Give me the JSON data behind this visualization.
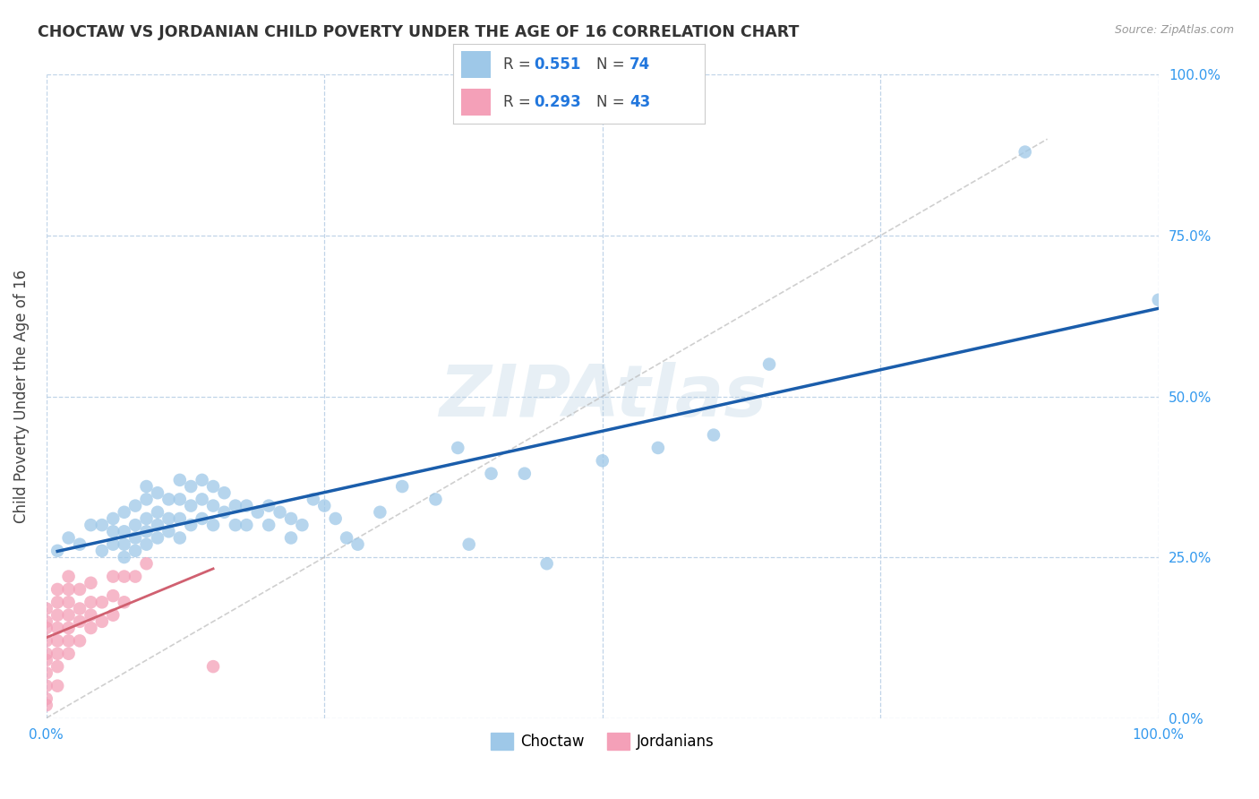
{
  "title": "CHOCTAW VS JORDANIAN CHILD POVERTY UNDER THE AGE OF 16 CORRELATION CHART",
  "source": "Source: ZipAtlas.com",
  "ylabel": "Child Poverty Under the Age of 16",
  "xlim": [
    0.0,
    1.0
  ],
  "ylim": [
    0.0,
    1.0
  ],
  "xticks": [
    0.0,
    0.25,
    0.5,
    0.75,
    1.0
  ],
  "yticks": [
    0.0,
    0.25,
    0.5,
    0.75,
    1.0
  ],
  "xticklabels": [
    "0.0%",
    "",
    "",
    "",
    "100.0%"
  ],
  "yticklabels_right": [
    "100.0%",
    "75.0%",
    "50.0%",
    "25.0%",
    "0.0%"
  ],
  "watermark": "ZIPAtlas",
  "legend_R1": "0.551",
  "legend_N1": "74",
  "legend_R2": "0.293",
  "legend_N2": "43",
  "choctaw_color": "#9ec8e8",
  "jordanian_color": "#f4a0b8",
  "trendline_choctaw_color": "#1a5dab",
  "trendline_jordanian_color": "#d06070",
  "grid_color": "#c0d4e8",
  "background_color": "#ffffff",
  "choctaw_x": [
    0.01,
    0.02,
    0.03,
    0.04,
    0.05,
    0.05,
    0.06,
    0.06,
    0.06,
    0.07,
    0.07,
    0.07,
    0.07,
    0.08,
    0.08,
    0.08,
    0.08,
    0.09,
    0.09,
    0.09,
    0.09,
    0.09,
    0.1,
    0.1,
    0.1,
    0.1,
    0.11,
    0.11,
    0.11,
    0.12,
    0.12,
    0.12,
    0.12,
    0.13,
    0.13,
    0.13,
    0.14,
    0.14,
    0.14,
    0.15,
    0.15,
    0.15,
    0.16,
    0.16,
    0.17,
    0.17,
    0.18,
    0.18,
    0.19,
    0.2,
    0.2,
    0.21,
    0.22,
    0.22,
    0.23,
    0.24,
    0.25,
    0.26,
    0.27,
    0.28,
    0.3,
    0.32,
    0.35,
    0.37,
    0.38,
    0.4,
    0.43,
    0.45,
    0.5,
    0.55,
    0.6,
    0.65,
    0.88,
    1.0
  ],
  "choctaw_y": [
    0.26,
    0.28,
    0.27,
    0.3,
    0.26,
    0.3,
    0.27,
    0.29,
    0.31,
    0.25,
    0.27,
    0.29,
    0.32,
    0.26,
    0.28,
    0.3,
    0.33,
    0.27,
    0.29,
    0.31,
    0.34,
    0.36,
    0.28,
    0.3,
    0.32,
    0.35,
    0.29,
    0.31,
    0.34,
    0.28,
    0.31,
    0.34,
    0.37,
    0.3,
    0.33,
    0.36,
    0.31,
    0.34,
    0.37,
    0.3,
    0.33,
    0.36,
    0.32,
    0.35,
    0.3,
    0.33,
    0.3,
    0.33,
    0.32,
    0.3,
    0.33,
    0.32,
    0.28,
    0.31,
    0.3,
    0.34,
    0.33,
    0.31,
    0.28,
    0.27,
    0.32,
    0.36,
    0.34,
    0.42,
    0.27,
    0.38,
    0.38,
    0.24,
    0.4,
    0.42,
    0.44,
    0.55,
    0.88,
    0.65
  ],
  "jordanian_x": [
    0.0,
    0.0,
    0.0,
    0.0,
    0.0,
    0.0,
    0.0,
    0.0,
    0.0,
    0.0,
    0.01,
    0.01,
    0.01,
    0.01,
    0.01,
    0.01,
    0.01,
    0.01,
    0.02,
    0.02,
    0.02,
    0.02,
    0.02,
    0.02,
    0.02,
    0.03,
    0.03,
    0.03,
    0.03,
    0.04,
    0.04,
    0.04,
    0.04,
    0.05,
    0.05,
    0.06,
    0.06,
    0.06,
    0.07,
    0.07,
    0.08,
    0.09,
    0.15
  ],
  "jordanian_y": [
    0.02,
    0.03,
    0.05,
    0.07,
    0.09,
    0.1,
    0.12,
    0.14,
    0.15,
    0.17,
    0.05,
    0.08,
    0.1,
    0.12,
    0.14,
    0.16,
    0.18,
    0.2,
    0.1,
    0.12,
    0.14,
    0.16,
    0.18,
    0.2,
    0.22,
    0.12,
    0.15,
    0.17,
    0.2,
    0.14,
    0.16,
    0.18,
    0.21,
    0.15,
    0.18,
    0.16,
    0.19,
    0.22,
    0.18,
    0.22,
    0.22,
    0.24,
    0.08
  ]
}
